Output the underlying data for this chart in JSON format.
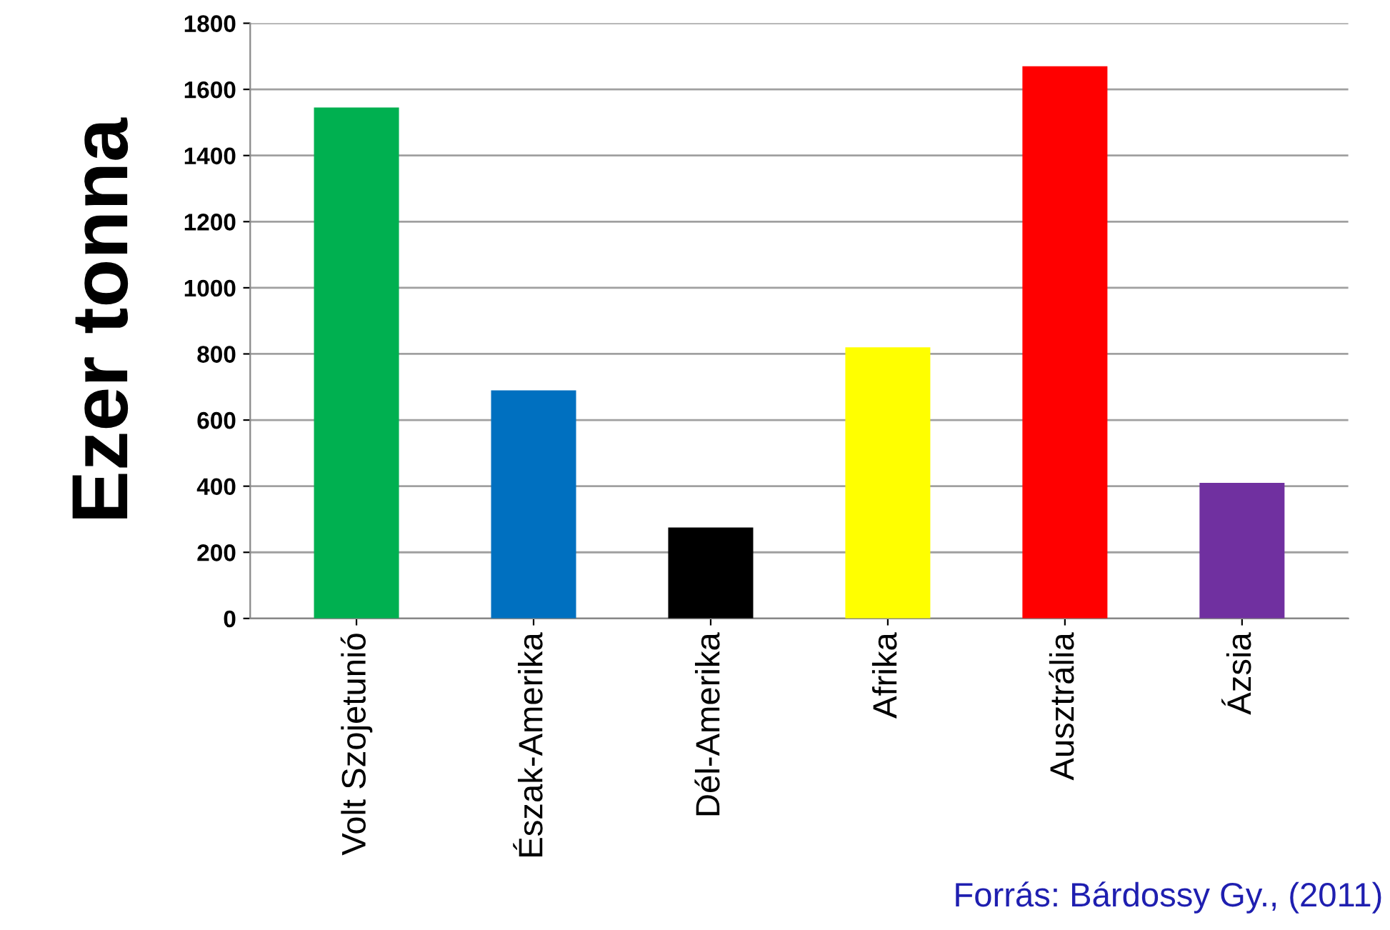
{
  "chart_data": {
    "type": "bar",
    "ylabel": "Ezer tonna",
    "categories": [
      "Volt Szojetunió",
      "Észak-Amerika",
      "Dél-Amerika",
      "Afrika",
      "Ausztrália",
      "Ázsia"
    ],
    "values": [
      1545,
      690,
      275,
      820,
      1670,
      410
    ],
    "colors": [
      "#00b050",
      "#0070c0",
      "#000000",
      "#ffff00",
      "#ff0000",
      "#7030a0"
    ],
    "ylim": [
      0,
      1800
    ],
    "yticks": [
      0,
      200,
      400,
      600,
      800,
      1000,
      1200,
      1400,
      1600,
      1800
    ],
    "grid": "y",
    "legend": false,
    "annotations": [
      "Forrás: Bárdossy Gy., (2011)"
    ]
  }
}
